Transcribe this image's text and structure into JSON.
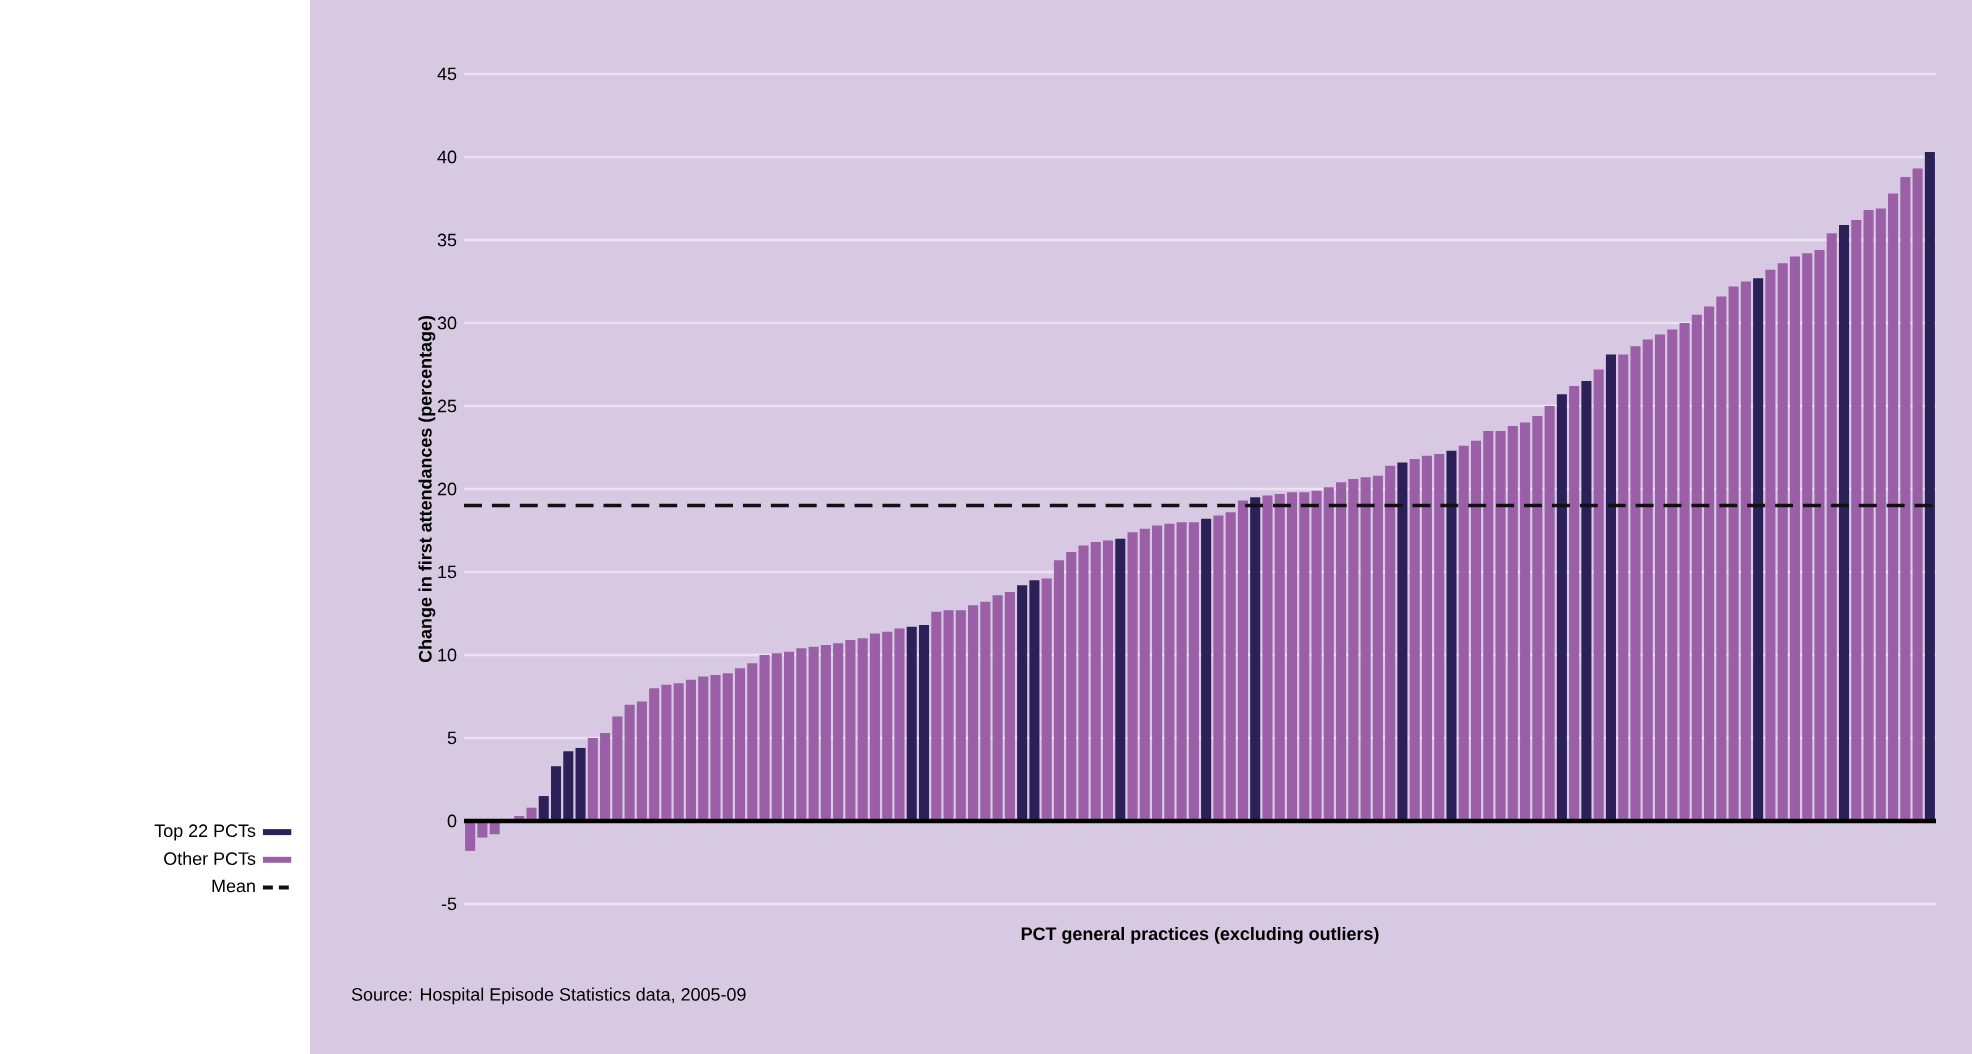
{
  "chart_data": {
    "type": "bar",
    "xlabel": "PCT general practices (excluding outliers)",
    "ylabel": "Change in first attendances (percentage)",
    "annotations": [
      "Source: Hospital Episode Statistics data, 2005-09"
    ],
    "categories": [
      null,
      null,
      null,
      null,
      null,
      null,
      null,
      null,
      null,
      null,
      null,
      null,
      null,
      null,
      null,
      null,
      null,
      null,
      null,
      null,
      null,
      null,
      null,
      null,
      null,
      null,
      null,
      null,
      null,
      null,
      null,
      null,
      null,
      null,
      null,
      null,
      null,
      null,
      null,
      null,
      null,
      null,
      null,
      null,
      null,
      null,
      null,
      null,
      null,
      null,
      null,
      null,
      null,
      null,
      null,
      null,
      null,
      null,
      null,
      null,
      null,
      null,
      null,
      null,
      null,
      null,
      null,
      null,
      null,
      null,
      null,
      null,
      null,
      null,
      null,
      null,
      null,
      null,
      null,
      null,
      null,
      null,
      null,
      null,
      null,
      null,
      null,
      null,
      null,
      null,
      null,
      null,
      null,
      null,
      null,
      null,
      null,
      null,
      null,
      null,
      null,
      null,
      null,
      null,
      null,
      null,
      null,
      null,
      null,
      null,
      null,
      null,
      null,
      null,
      null,
      null,
      null,
      null,
      null,
      null
    ],
    "series": [
      {
        "name": "Top 22 PCTs",
        "color": "#2b2158",
        "values": [
          null,
          null,
          null,
          null,
          null,
          null,
          1.5,
          3.3,
          4.2,
          4.4,
          null,
          null,
          null,
          null,
          null,
          null,
          null,
          null,
          null,
          null,
          null,
          null,
          null,
          null,
          null,
          null,
          null,
          null,
          null,
          null,
          null,
          null,
          null,
          null,
          null,
          null,
          11.7,
          11.8,
          null,
          null,
          null,
          null,
          null,
          null,
          null,
          14.2,
          14.5,
          null,
          null,
          null,
          null,
          null,
          null,
          17.0,
          null,
          null,
          null,
          null,
          null,
          null,
          18.2,
          null,
          null,
          null,
          19.5,
          null,
          null,
          null,
          null,
          null,
          null,
          null,
          null,
          null,
          null,
          null,
          21.6,
          null,
          null,
          null,
          22.3,
          null,
          null,
          null,
          null,
          null,
          null,
          null,
          null,
          25.7,
          null,
          26.5,
          null,
          28.1,
          null,
          null,
          null,
          null,
          null,
          null,
          null,
          null,
          null,
          null,
          null,
          32.7,
          null,
          null,
          null,
          null,
          null,
          null,
          35.9,
          null,
          null,
          null,
          null,
          null,
          null,
          40.3
        ]
      },
      {
        "name": "Other PCTs",
        "color": "#9b5fa8",
        "values": [
          -1.8,
          -1.0,
          -0.8,
          null,
          0.3,
          0.8,
          null,
          null,
          null,
          null,
          5.0,
          5.3,
          6.3,
          7.0,
          7.2,
          8.0,
          8.2,
          8.3,
          8.5,
          8.7,
          8.8,
          8.9,
          9.2,
          9.5,
          10.0,
          10.1,
          10.2,
          10.4,
          10.5,
          10.6,
          10.7,
          10.9,
          11.0,
          11.3,
          11.4,
          11.6,
          null,
          null,
          12.6,
          12.7,
          12.7,
          13.0,
          13.2,
          13.6,
          13.8,
          null,
          null,
          14.6,
          15.7,
          16.2,
          16.6,
          16.8,
          16.9,
          null,
          17.4,
          17.6,
          17.8,
          17.9,
          18.0,
          18.0,
          null,
          18.4,
          18.6,
          19.3,
          null,
          19.6,
          19.7,
          19.8,
          19.8,
          19.9,
          20.1,
          20.4,
          20.6,
          20.7,
          20.8,
          21.4,
          null,
          21.8,
          22.0,
          22.1,
          null,
          22.6,
          22.9,
          23.5,
          23.5,
          23.8,
          24.0,
          24.4,
          25.0,
          null,
          26.2,
          null,
          27.2,
          null,
          28.1,
          28.6,
          29.0,
          29.3,
          29.6,
          30.0,
          30.5,
          31.0,
          31.6,
          32.2,
          32.5,
          null,
          33.2,
          33.6,
          34.0,
          34.2,
          34.4,
          35.4,
          null,
          36.2,
          36.8,
          36.9,
          37.8,
          38.8,
          39.3,
          null
        ]
      }
    ],
    "ref_lines": [
      {
        "axis": "y",
        "value": 19,
        "label": "Mean",
        "color": "#111111",
        "line_style": "dashed"
      }
    ],
    "ylim": [
      -5,
      45
    ],
    "yticks": [
      -5,
      0,
      5,
      10,
      15,
      20,
      25,
      30,
      35,
      40,
      45
    ],
    "grid": "y",
    "legend": "bottom left",
    "tick_labels": "y"
  }
}
